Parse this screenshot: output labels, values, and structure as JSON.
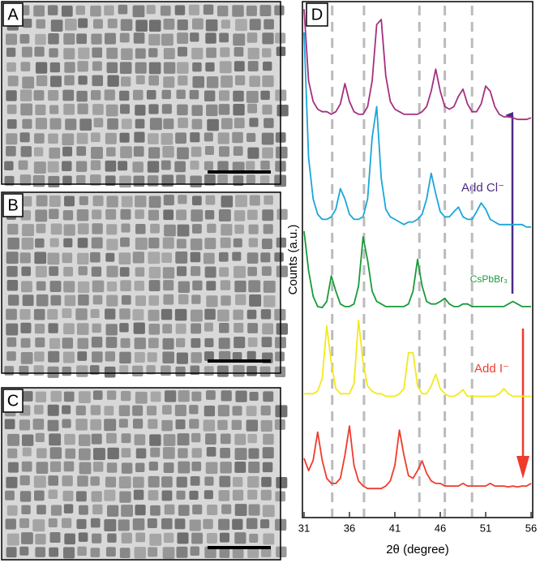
{
  "panels": [
    "A",
    "B",
    "C"
  ],
  "chart_data": {
    "type": "line",
    "panel_label": "D",
    "xlabel": "2θ (degree)",
    "ylabel": "Counts (a.u.)",
    "xlim": [
      31,
      56
    ],
    "xticks": [
      31,
      36,
      41,
      46,
      51,
      56
    ],
    "ylim": [
      0,
      100
    ],
    "reference_lines": [
      34.1,
      37.6,
      43.7,
      46.5,
      49.5
    ],
    "reference_color": "#bbbbbb",
    "x": [
      31,
      31.5,
      32,
      32.5,
      33,
      33.5,
      34,
      34.5,
      35,
      35.5,
      36,
      36.5,
      37,
      37.5,
      38,
      38.5,
      39,
      39.5,
      40,
      40.5,
      41,
      41.5,
      42,
      42.5,
      43,
      43.5,
      44,
      44.5,
      45,
      45.5,
      46,
      46.5,
      47,
      47.5,
      48,
      48.5,
      49,
      49.5,
      50,
      50.5,
      51,
      51.5,
      52,
      52.5,
      53,
      53.5,
      54,
      54.5,
      55,
      55.5,
      56
    ],
    "series": [
      {
        "color": "#a4307f",
        "values": [
          99,
          85,
          81,
          79.5,
          79,
          79,
          78.5,
          79,
          80.5,
          84.5,
          81,
          79,
          78.5,
          78.5,
          80,
          85,
          96,
          97,
          86,
          81,
          79.5,
          79,
          78.5,
          78.5,
          78.5,
          78.5,
          79,
          80,
          83,
          87.3,
          83,
          80,
          79.5,
          80,
          82,
          83.4,
          80.5,
          79,
          79,
          80.5,
          84,
          83,
          80,
          78.5,
          78,
          78,
          77.8,
          77.5,
          77.5,
          77.5,
          77.8
        ]
      },
      {
        "color": "#1aa6db",
        "values": [
          94.5,
          70,
          62,
          59,
          58,
          58,
          58.5,
          60,
          64,
          62,
          59,
          58,
          58,
          58.5,
          62,
          74,
          80,
          66,
          60,
          58.5,
          58,
          57.5,
          57,
          57.5,
          57.5,
          58,
          59,
          62,
          67,
          63,
          59.5,
          58.5,
          58.5,
          59.5,
          60.4,
          58.5,
          58,
          58,
          59.5,
          61.2,
          60,
          58,
          57.5,
          57,
          57,
          57,
          57,
          57,
          57,
          56.5,
          56.5
        ]
      },
      {
        "color": "#1a9a3a",
        "values": [
          55.7,
          48,
          43,
          41,
          40.8,
          42,
          47,
          44,
          41.5,
          41,
          41,
          41.5,
          45,
          54.6,
          50,
          44,
          42,
          41.5,
          41,
          41,
          41,
          41,
          41,
          41.5,
          44,
          50.2,
          45,
          42,
          41.5,
          41.5,
          42,
          42.6,
          41.5,
          41,
          41,
          41.5,
          41.5,
          41,
          41,
          41,
          41,
          41,
          41,
          41,
          41,
          41.5,
          42,
          41.5,
          41,
          41,
          41
        ]
      },
      {
        "color": "#f2ea1c",
        "values": [
          24,
          24,
          24,
          24.5,
          27,
          37.2,
          30,
          25,
          24,
          24,
          24,
          26,
          38.3,
          30,
          25.5,
          24.5,
          24,
          24,
          23.5,
          23.5,
          23.5,
          24,
          25,
          32,
          32,
          25.5,
          24,
          24,
          25.5,
          27.8,
          25,
          24,
          23.5,
          23.5,
          24,
          24.8,
          23.5,
          23.5,
          23.5,
          23.5,
          23.5,
          23.5,
          23.5,
          24,
          25,
          24,
          23.5,
          23.5,
          23.5,
          23.5,
          23.5
        ]
      },
      {
        "color": "#ef3b2c",
        "values": [
          11.4,
          9,
          11,
          16.5,
          11,
          7.5,
          6.5,
          6.5,
          7.5,
          12,
          17.7,
          10,
          7,
          6,
          5.5,
          5.5,
          5.5,
          5.5,
          6,
          7,
          10,
          16.9,
          12,
          8,
          7.5,
          9,
          10.9,
          8.5,
          7,
          6.5,
          6.5,
          6,
          6,
          6,
          6,
          6.5,
          6,
          6,
          6,
          6,
          6,
          6.5,
          6,
          6,
          6,
          5.8,
          6,
          5.8,
          6,
          6,
          6.5
        ]
      }
    ],
    "annotations": [
      {
        "text": "Add Cl⁻",
        "color": "#4b2a86"
      },
      {
        "text": "CsPbBr₃",
        "color": "#1a9a3a"
      },
      {
        "text": "Add I⁻",
        "color": "#ef3b2c"
      }
    ]
  }
}
